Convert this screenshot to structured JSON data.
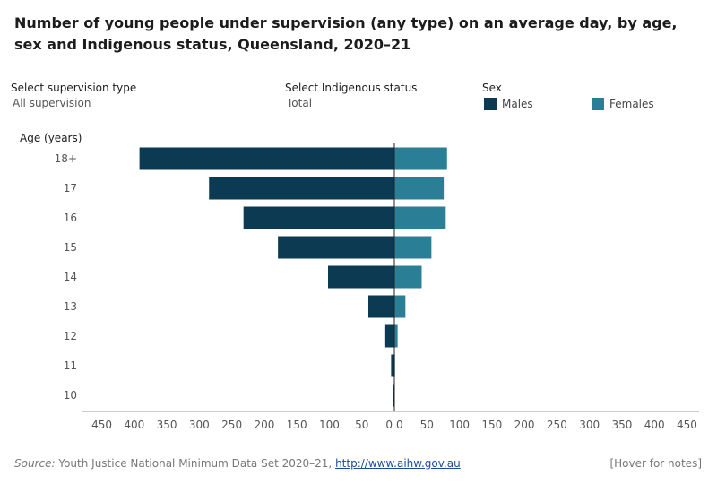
{
  "title": "Number of young people under supervision (any type) on an average day, by age, sex and Indigenous status, Queensland, 2020–21",
  "controls": {
    "supervision_label": "Select supervision type",
    "supervision_value": "All supervision",
    "indigenous_label": "Select Indigenous status",
    "indigenous_value": "Total"
  },
  "legend": {
    "title": "Sex",
    "items": [
      {
        "label": "Males",
        "color": "#0b3a52"
      },
      {
        "label": "Females",
        "color": "#2a7f97"
      }
    ]
  },
  "footer": {
    "source_label": "Source:",
    "source_text": " Youth Justice National Minimum Data Set 2020–21, ",
    "source_link": "http://www.aihw.gov.au",
    "notes": "[Hover for notes]"
  },
  "chart_data": {
    "type": "bar",
    "orientation": "horizontal-diverging",
    "ylabel": "Age (years)",
    "categories": [
      "18+",
      "17",
      "16",
      "15",
      "14",
      "13",
      "12",
      "11",
      "10"
    ],
    "series": [
      {
        "name": "Males",
        "values": [
          392,
          285,
          232,
          179,
          102,
          40,
          14,
          5,
          1
        ]
      },
      {
        "name": "Females",
        "values": [
          81,
          76,
          79,
          57,
          42,
          17,
          5,
          1,
          0
        ]
      }
    ],
    "xlim": [
      -450,
      450
    ],
    "xticks_left": [
      "450",
      "400",
      "350",
      "300",
      "250",
      "200",
      "150",
      "100",
      "50",
      "0"
    ],
    "xticks_right": [
      "0",
      "50",
      "100",
      "150",
      "200",
      "250",
      "300",
      "350",
      "400",
      "450"
    ],
    "grid": false,
    "legend_position": "top-right"
  }
}
